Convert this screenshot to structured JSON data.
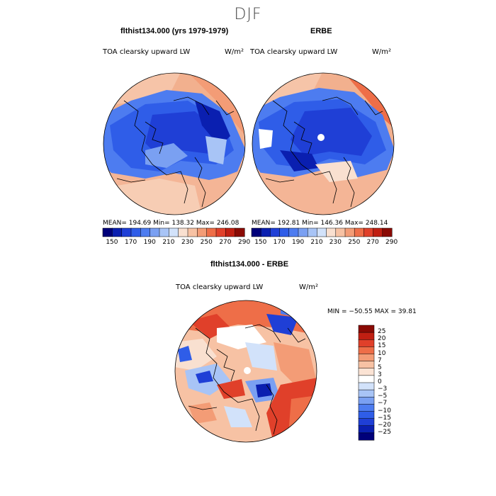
{
  "figure": {
    "season": "DJF"
  },
  "panels": [
    {
      "title": "flthist134.000 (yrs 1979-1979)",
      "variable": "TOA clearsky upward LW",
      "units": "W/m²",
      "stats": "MEAN= 194.69   Min= 138.32   Max= 246.08"
    },
    {
      "title": "ERBE",
      "variable": "TOA clearsky upward LW",
      "units": "W/m²",
      "stats": "MEAN= 192.81   Min= 146.36   Max= 248.14"
    },
    {
      "title": "flthist134.000 - ERBE",
      "variable": "TOA clearsky upward LW",
      "units": "W/m²",
      "stats": "MIN = −50.55  MAX =  39.81"
    }
  ],
  "colorbar_abs": {
    "tick_labels": [
      "150",
      "170",
      "190",
      "210",
      "230",
      "250",
      "270",
      "290"
    ],
    "colors": [
      "#00007a",
      "#0a1fb0",
      "#1f3fd6",
      "#2f5de8",
      "#4d7cf0",
      "#7aa0f2",
      "#a8c4f6",
      "#d2e2fa",
      "#f9e0d0",
      "#f7c2a4",
      "#f39c76",
      "#ee6e48",
      "#e0402a",
      "#c01f12",
      "#8a0a04"
    ]
  },
  "colorbar_diff": {
    "tick_labels": [
      "25",
      "20",
      "15",
      "10",
      "7",
      "5",
      "3",
      "0",
      "−3",
      "−5",
      "−7",
      "−10",
      "−15",
      "−20",
      "−25"
    ],
    "colors": [
      "#8a0a04",
      "#c01f12",
      "#e0402a",
      "#ee6e48",
      "#f39c76",
      "#f7c2a4",
      "#fbe3d4",
      "#ffffff",
      "#d2e2fa",
      "#a8c4f6",
      "#7aa0f2",
      "#4d7cf0",
      "#2f5de8",
      "#1f3fd6",
      "#0a1fb0",
      "#00007a"
    ]
  }
}
